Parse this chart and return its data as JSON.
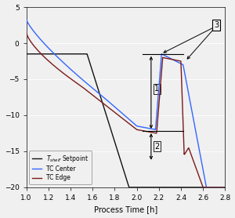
{
  "xlim": [
    1.0,
    2.8
  ],
  "ylim": [
    -20,
    5
  ],
  "xlabel": "Process Time [h]",
  "xticks": [
    1.0,
    1.2,
    1.4,
    1.6,
    1.8,
    2.0,
    2.2,
    2.4,
    2.6,
    2.8
  ],
  "yticks": [
    -20,
    -15,
    -10,
    -5,
    0,
    5
  ],
  "shelf_color": "#111111",
  "center_color": "#3366ff",
  "edge_color": "#7b1a1a",
  "bg_color": "#f0f0f0",
  "figsize": [
    3.0,
    2.78
  ],
  "dpi": 100,
  "xlabel_fontsize": 7,
  "tick_fontsize": 6.5
}
